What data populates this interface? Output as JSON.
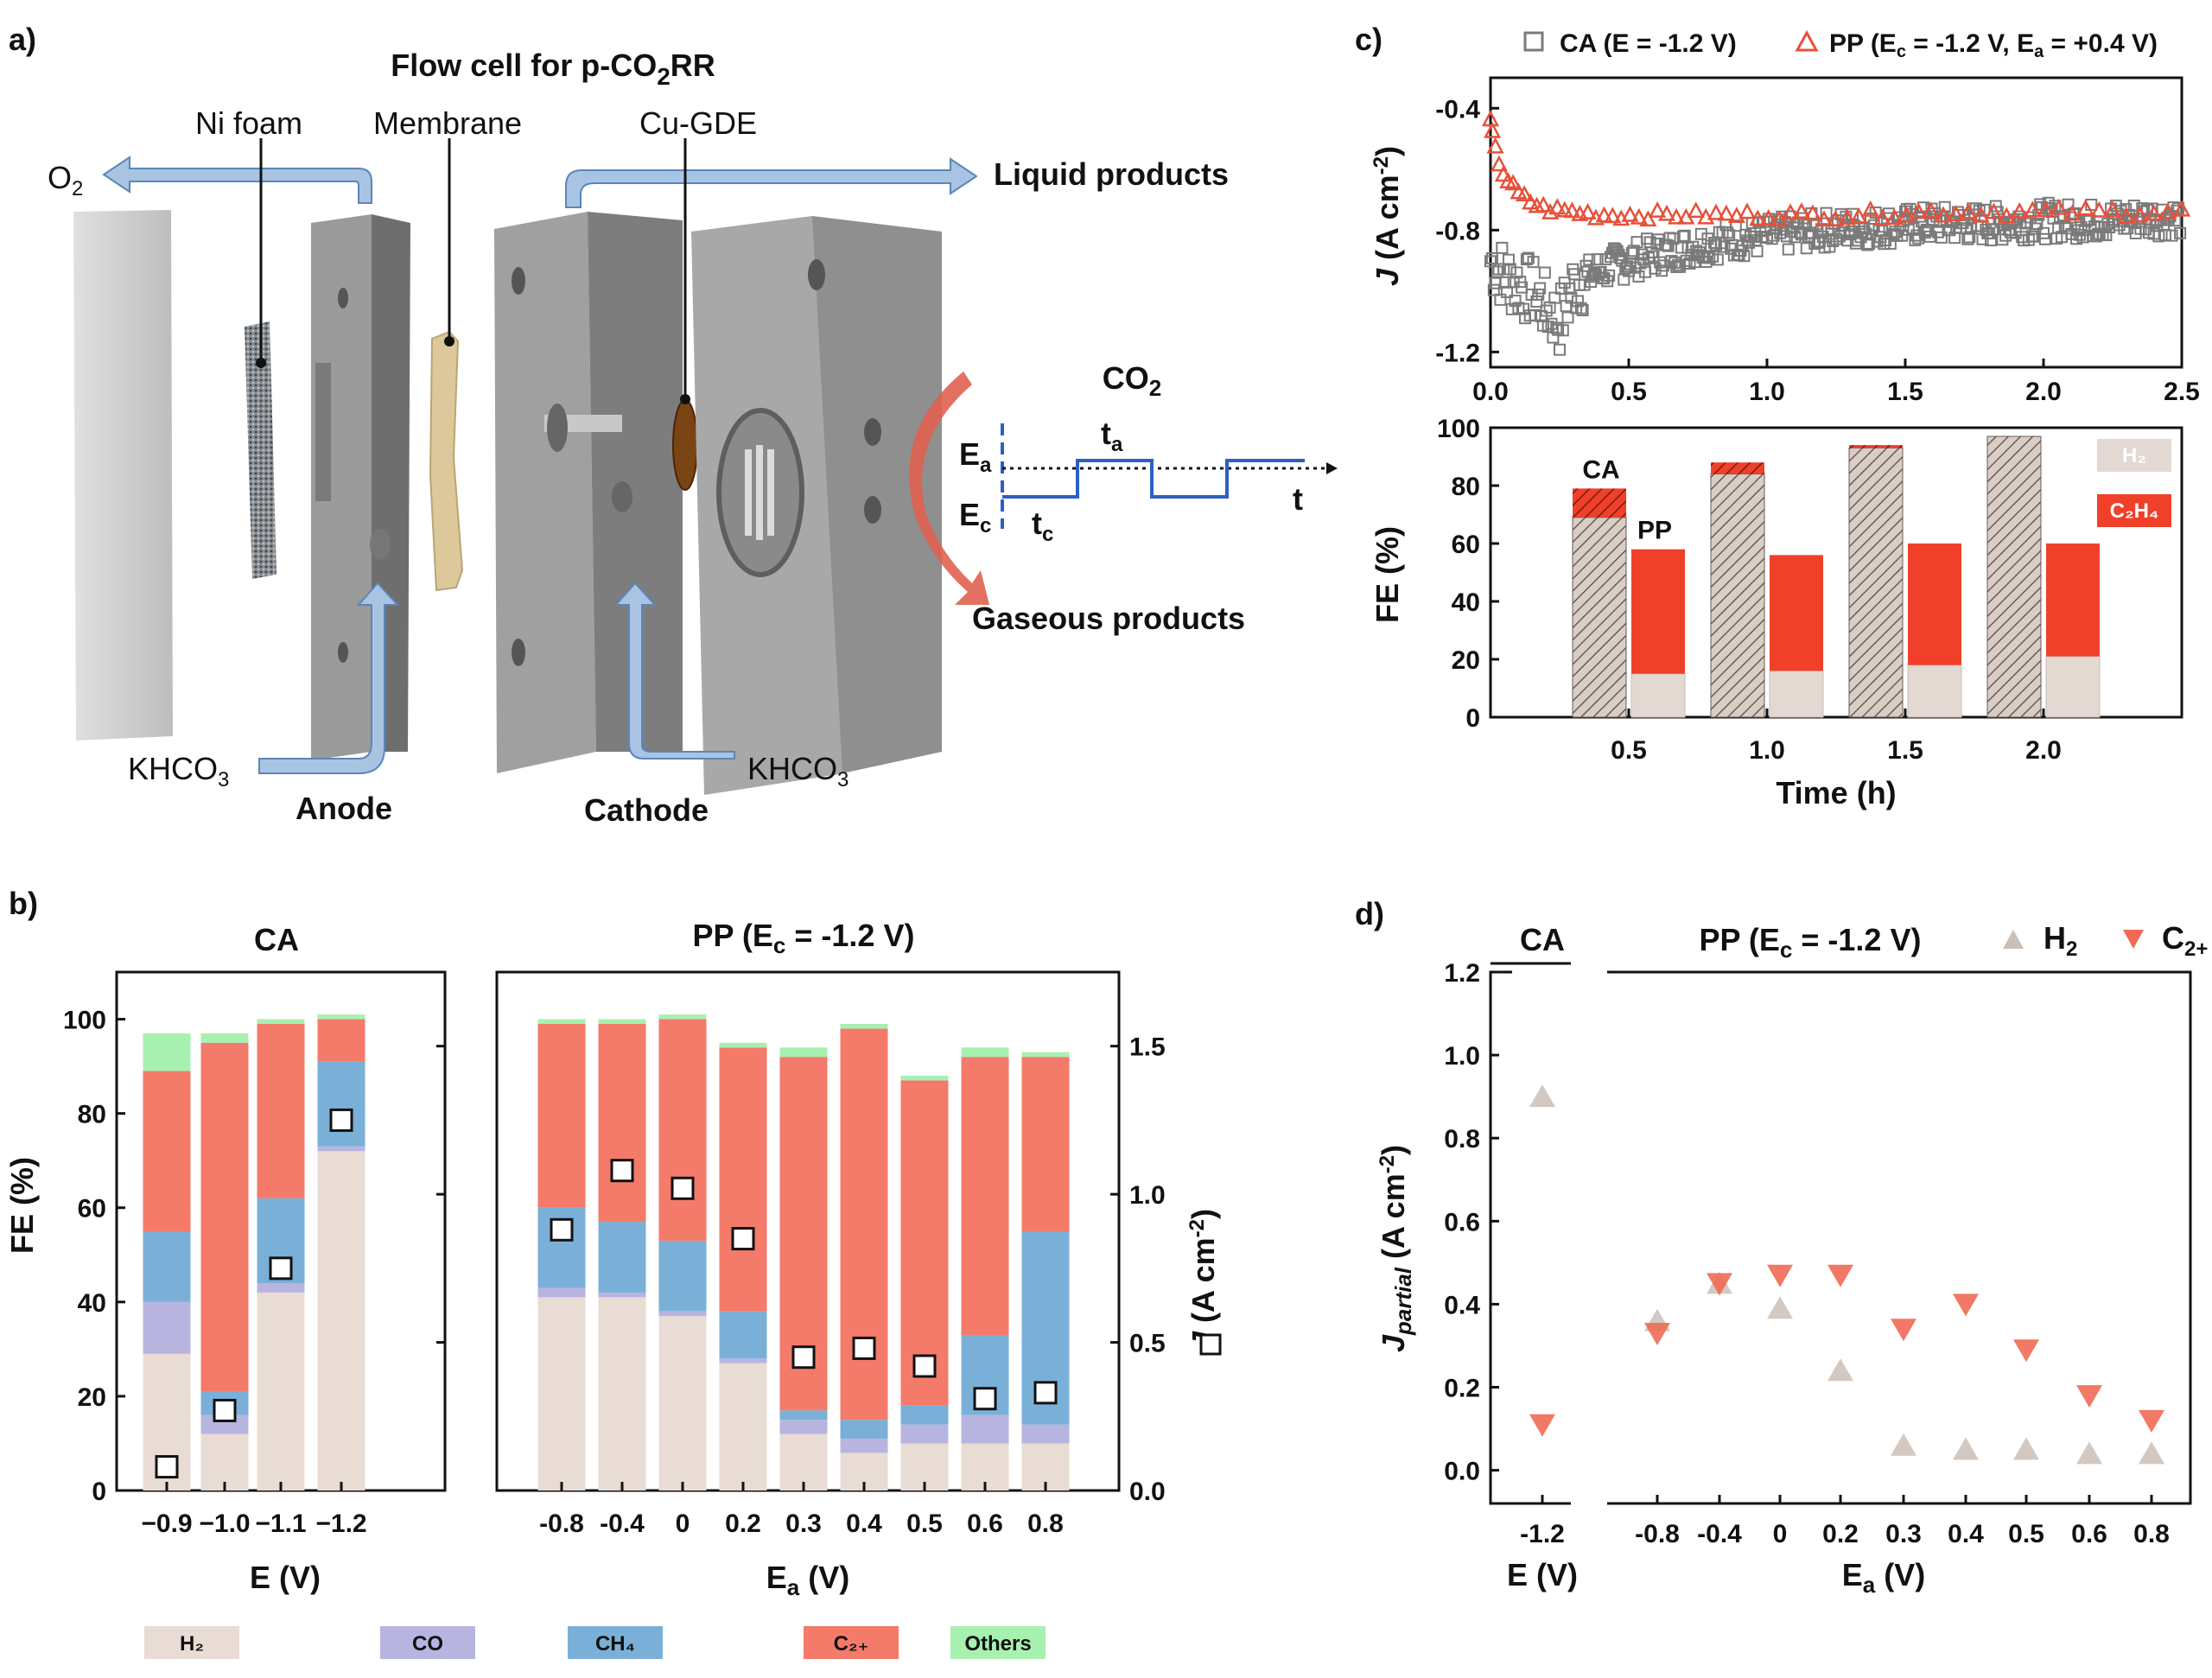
{
  "panel_labels": {
    "a": "a)",
    "b": "b)",
    "c": "c)",
    "d": "d)"
  },
  "panel_a": {
    "title": "Flow cell for p-CO₂RR",
    "labels": {
      "ni_foam": "Ni foam",
      "membrane": "Membrane",
      "cu_gde": "Cu-GDE",
      "o2": "O₂",
      "liquid": "Liquid products",
      "gaseous": "Gaseous products",
      "co2": "CO₂",
      "khco3_left": "KHCO₃",
      "khco3_right": "KHCO₃",
      "anode": "Anode",
      "cathode": "Cathode",
      "ea": "Eₐ",
      "ec": "Eᶜ",
      "ta": "tₐ",
      "tc": "tᶜ",
      "t": "t"
    },
    "colors": {
      "arrow": "#a9c4e2",
      "arrow_stroke": "#5b86b8",
      "plate": "#8a8a8a",
      "membrane": "#dcc89a",
      "wave": "#2c5fc4",
      "curve": "#e0614f"
    }
  },
  "chart_data": [
    {
      "id": "c_top",
      "type": "scatter",
      "xlabel": "",
      "ylabel": "J (A cm⁻²)",
      "xlim": [
        0,
        2.5
      ],
      "ylim": [
        -1.25,
        -0.3
      ],
      "xticks": [
        "0.0",
        "0.5",
        "1.0",
        "1.5",
        "2.0",
        "2.5"
      ],
      "yticks": [
        "-0.4",
        "-0.8",
        "-1.2"
      ],
      "series": [
        {
          "name": "CA (E = -1.2 V)",
          "color": "#7a7a7a",
          "marker": "square",
          "x": [
            0,
            0.05,
            0.1,
            0.15,
            0.2,
            0.25,
            0.3,
            0.4,
            0.5,
            0.6,
            0.7,
            0.8,
            0.9,
            1.0,
            1.2,
            1.4,
            1.6,
            1.8,
            2.0,
            2.2,
            2.4,
            2.5
          ],
          "y": [
            -0.9,
            -0.95,
            -0.98,
            -1.0,
            -1.05,
            -1.1,
            -0.98,
            -0.93,
            -0.9,
            -0.88,
            -0.86,
            -0.84,
            -0.83,
            -0.82,
            -0.8,
            -0.79,
            -0.78,
            -0.78,
            -0.77,
            -0.77,
            -0.76,
            -0.76
          ]
        },
        {
          "name": "PP (Ec = -1.2 V, Ea = +0.4 V)",
          "color": "#e8503a",
          "marker": "triangle",
          "x": [
            0,
            0.02,
            0.05,
            0.1,
            0.15,
            0.2,
            0.3,
            0.4,
            0.5,
            0.7,
            1.0,
            1.3,
            1.6,
            1.9,
            2.2,
            2.5
          ],
          "y": [
            -0.45,
            -0.55,
            -0.62,
            -0.68,
            -0.71,
            -0.73,
            -0.74,
            -0.75,
            -0.75,
            -0.75,
            -0.75,
            -0.75,
            -0.74,
            -0.74,
            -0.74,
            -0.74
          ]
        }
      ],
      "legend": [
        "CA (E = -1.2 V)",
        "PP (E",
        "c",
        " = -1.2 V, E",
        "a",
        " = +0.4 V)"
      ]
    },
    {
      "id": "c_bottom",
      "type": "bar",
      "xlabel": "Time (h)",
      "ylabel": "FE (%)",
      "ylim": [
        0,
        100
      ],
      "yticks": [
        "0",
        "20",
        "40",
        "60",
        "80",
        "100"
      ],
      "categories": [
        "0.5",
        "1.0",
        "1.5",
        "2.0"
      ],
      "series": [
        {
          "name": "CA H₂",
          "values": [
            69,
            84,
            93,
            97
          ]
        },
        {
          "name": "CA C₂H₄",
          "values": [
            10,
            4,
            1,
            0
          ]
        },
        {
          "name": "PP H₂",
          "values": [
            15,
            16,
            18,
            21
          ]
        },
        {
          "name": "PP C₂H₄",
          "values": [
            43,
            40,
            42,
            39
          ]
        }
      ],
      "annotations": [
        "CA",
        "PP"
      ],
      "legend": [
        "H₂",
        "C₂H₄"
      ],
      "colors": {
        "h2": "#e4d9d2",
        "c2h4": "#f0402a"
      }
    },
    {
      "id": "b_ca",
      "type": "bar",
      "title": "CA",
      "xlabel": "E (V)",
      "ylabel": "FE (%)",
      "ylim": [
        0,
        110
      ],
      "yticks": [
        "0",
        "20",
        "40",
        "60",
        "80",
        "100"
      ],
      "categories": [
        "−0.9",
        "−1.0",
        "−1.1",
        "−1.2"
      ],
      "series": [
        {
          "name": "H₂",
          "values": [
            29,
            12,
            42,
            72
          ]
        },
        {
          "name": "CO",
          "values": [
            11,
            4,
            2,
            1
          ]
        },
        {
          "name": "CH₄",
          "values": [
            15,
            5,
            18,
            18
          ]
        },
        {
          "name": "C₂₊",
          "values": [
            34,
            74,
            37,
            9
          ]
        },
        {
          "name": "Others",
          "values": [
            8,
            2,
            1,
            1
          ]
        }
      ],
      "J": [
        0.08,
        0.27,
        0.75,
        1.25
      ]
    },
    {
      "id": "b_pp",
      "type": "bar",
      "title": "PP (E",
      "title_sub": "c",
      "title_tail": " = -1.2 V)",
      "xlabel": "E",
      "xlabel_sub": "a",
      "xlabel_tail": " (V)",
      "ylabel_right": "J (A cm⁻²)",
      "ylim": [
        0,
        110
      ],
      "y2lim": [
        0,
        1.75
      ],
      "y2ticks": [
        "0.0",
        "0.5",
        "1.0",
        "1.5"
      ],
      "categories": [
        "-0.8",
        "-0.4",
        "0",
        "0.2",
        "0.3",
        "0.4",
        "0.5",
        "0.6",
        "0.8"
      ],
      "series": [
        {
          "name": "H₂",
          "values": [
            41,
            41,
            37,
            27,
            12,
            8,
            10,
            10,
            10
          ]
        },
        {
          "name": "CO",
          "values": [
            2,
            1,
            1,
            1,
            3,
            3,
            4,
            6,
            4
          ]
        },
        {
          "name": "CH₄",
          "values": [
            17,
            15,
            15,
            10,
            2,
            4,
            4,
            17,
            41
          ]
        },
        {
          "name": "C₂₊",
          "values": [
            39,
            42,
            47,
            56,
            75,
            83,
            69,
            59,
            37
          ]
        },
        {
          "name": "Others",
          "values": [
            1,
            1,
            1,
            1,
            2,
            1,
            1,
            2,
            1
          ]
        }
      ],
      "J": [
        0.88,
        1.08,
        1.02,
        0.85,
        0.45,
        0.48,
        0.42,
        0.31,
        0.33
      ]
    },
    {
      "id": "d",
      "type": "scatter",
      "ylabel": "J",
      "ylabel_sub": "partial",
      "ylabel_tail": " (A cm⁻²)",
      "ylim": [
        -0.08,
        1.2
      ],
      "yticks": [
        "0.0",
        "0.2",
        "0.4",
        "0.6",
        "0.8",
        "1.0",
        "1.2"
      ],
      "categories": [
        "-1.2",
        "-0.8",
        "-0.4",
        "0",
        "0.2",
        "0.3",
        "0.4",
        "0.5",
        "0.6",
        "0.8"
      ],
      "series": [
        {
          "name": "H₂",
          "color": "#cbbfb6",
          "marker": "triangle",
          "values": [
            0.9,
            0.36,
            0.45,
            0.39,
            0.24,
            0.06,
            0.05,
            0.05,
            0.04,
            0.04
          ]
        },
        {
          "name": "C₂₊",
          "color": "#ef6a54",
          "marker": "triangle-down",
          "values": [
            0.11,
            0.33,
            0.45,
            0.47,
            0.47,
            0.34,
            0.4,
            0.29,
            0.18,
            0.12
          ]
        }
      ],
      "title_ca": "CA",
      "title_pp": "PP (E",
      "title_pp_sub": "c",
      "title_pp_tail": " = -1.2 V)",
      "xlabel_ca": "E (V)",
      "xlabel_pp": "E",
      "xlabel_pp_sub": "a",
      "xlabel_pp_tail": " (V)",
      "legend": [
        "H",
        "2",
        "C",
        "2+"
      ]
    }
  ],
  "legend_b": [
    "H₂",
    "CO",
    "CH₄",
    "C₂₊",
    "Others"
  ],
  "legend_b_colors": [
    "#e8dcd4",
    "#b8b4e0",
    "#7ab0d8",
    "#f47a6a",
    "#a8f0b0"
  ]
}
